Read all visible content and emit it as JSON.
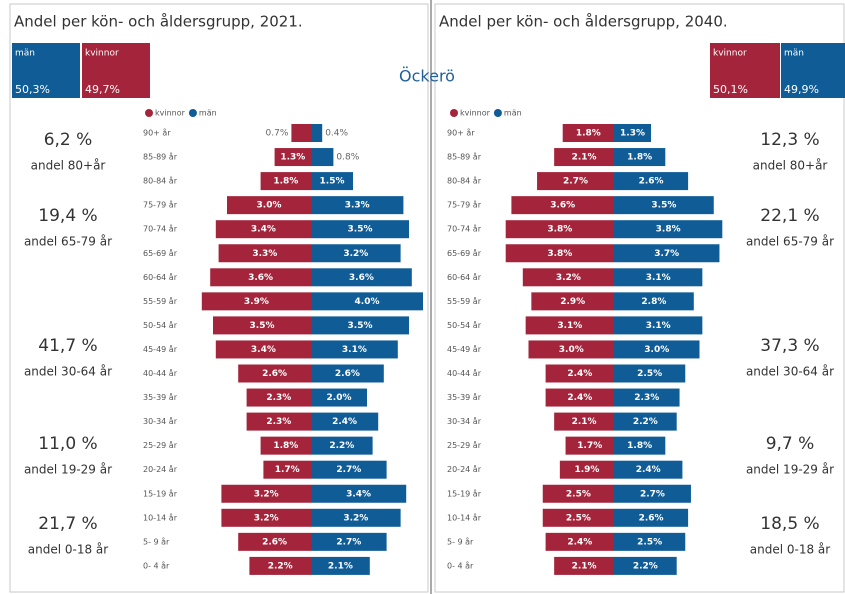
{
  "place": "Öckerö",
  "chart_data": [
    {
      "type": "pyramid",
      "title": "Andel per kön- och åldersgrupp, 2021.",
      "categories": [
        "90+ år",
        "85-89 år",
        "80-84 år",
        "75-79 år",
        "70-74 år",
        "65-69 år",
        "60-64 år",
        "55-59 år",
        "50-54 år",
        "45-49 år",
        "40-44 år",
        "35-39 år",
        "30-34 år",
        "25-29 år",
        "20-24 år",
        "15-19 år",
        "10-14 år",
        "5- 9 år",
        "0- 4 år"
      ],
      "series": [
        {
          "name": "kvinnor",
          "color": "#a4253b",
          "values": [
            0.7,
            1.3,
            1.8,
            3.0,
            3.4,
            3.3,
            3.6,
            3.9,
            3.5,
            3.4,
            2.6,
            2.3,
            2.3,
            1.8,
            1.7,
            3.2,
            3.2,
            2.6,
            2.2
          ],
          "value_labels": [
            "0.7%",
            "1.3%",
            "1.8%",
            "3.0%",
            "3.4%",
            "3.3%",
            "3.6%",
            "3.9%",
            "3.5%",
            "3.4%",
            "2.6%",
            "2.3%",
            "2.3%",
            "1.8%",
            "1.7%",
            "3.2%",
            "3.2%",
            "2.6%",
            "2.2%"
          ]
        },
        {
          "name": "män",
          "color": "#0f5c97",
          "values": [
            0.4,
            0.8,
            1.5,
            3.3,
            3.5,
            3.2,
            3.6,
            4.0,
            3.5,
            3.1,
            2.6,
            2.0,
            2.4,
            2.2,
            2.7,
            3.4,
            3.2,
            2.7,
            2.1
          ],
          "value_labels": [
            "0.4%",
            "0.8%",
            "1.5%",
            "3.3%",
            "3.5%",
            "3.2%",
            "3.6%",
            "4.0%",
            "3.5%",
            "3.1%",
            "2.6%",
            "2.0%",
            "2.4%",
            "2.2%",
            "2.7%",
            "3.4%",
            "3.2%",
            "2.7%",
            "2.1%"
          ]
        }
      ],
      "totals": [
        {
          "name": "män",
          "value": 50.3,
          "label": "50,3%"
        },
        {
          "name": "kvinnor",
          "value": 49.7,
          "label": "49,7%"
        }
      ],
      "groups": [
        {
          "value": 6.2,
          "label": "6,2 %",
          "name": "andel 80+år"
        },
        {
          "value": 19.4,
          "label": "19,4 %",
          "name": "andel 65-79 år"
        },
        {
          "value": 41.7,
          "label": "41,7 %",
          "name": "andel 30-64 år"
        },
        {
          "value": 11.0,
          "label": "11,0 %",
          "name": "andel 19-29 år"
        },
        {
          "value": 21.7,
          "label": "21,7 %",
          "name": "andel 0-18 år"
        }
      ]
    },
    {
      "type": "pyramid",
      "title": "Andel per kön- och åldersgrupp, 2040.",
      "categories": [
        "90+ år",
        "85-89 år",
        "80-84 år",
        "75-79 år",
        "70-74 år",
        "65-69 år",
        "60-64 år",
        "55-59 år",
        "50-54 år",
        "45-49 år",
        "40-44 år",
        "35-39 år",
        "30-34 år",
        "25-29 år",
        "20-24 år",
        "15-19 år",
        "10-14 år",
        "5- 9 år",
        "0- 4 år"
      ],
      "series": [
        {
          "name": "kvinnor",
          "color": "#a4253b",
          "values": [
            1.8,
            2.1,
            2.7,
            3.6,
            3.8,
            3.8,
            3.2,
            2.9,
            3.1,
            3.0,
            2.4,
            2.4,
            2.1,
            1.7,
            1.9,
            2.5,
            2.5,
            2.4,
            2.1
          ],
          "value_labels": [
            "1.8%",
            "2.1%",
            "2.7%",
            "3.6%",
            "3.8%",
            "3.8%",
            "3.2%",
            "2.9%",
            "3.1%",
            "3.0%",
            "2.4%",
            "2.4%",
            "2.1%",
            "1.7%",
            "1.9%",
            "2.5%",
            "2.5%",
            "2.4%",
            "2.1%"
          ]
        },
        {
          "name": "män",
          "color": "#0f5c97",
          "values": [
            1.3,
            1.8,
            2.6,
            3.5,
            3.8,
            3.7,
            3.1,
            2.8,
            3.1,
            3.0,
            2.5,
            2.3,
            2.2,
            1.8,
            2.4,
            2.7,
            2.6,
            2.5,
            2.2
          ],
          "value_labels": [
            "1.3%",
            "1.8%",
            "2.6%",
            "3.5%",
            "3.8%",
            "3.7%",
            "3.1%",
            "2.8%",
            "3.1%",
            "3.0%",
            "2.5%",
            "2.3%",
            "2.2%",
            "1.8%",
            "2.4%",
            "2.7%",
            "2.6%",
            "2.5%",
            "2.2%"
          ]
        }
      ],
      "totals": [
        {
          "name": "kvinnor",
          "value": 50.1,
          "label": "50,1%"
        },
        {
          "name": "män",
          "value": 49.9,
          "label": "49,9%"
        }
      ],
      "groups": [
        {
          "value": 12.3,
          "label": "12,3 %",
          "name": "andel 80+år"
        },
        {
          "value": 22.1,
          "label": "22,1 %",
          "name": "andel 65-79 år"
        },
        {
          "value": 37.3,
          "label": "37,3 %",
          "name": "andel 30-64 år"
        },
        {
          "value": 9.7,
          "label": "9,7 %",
          "name": "andel 19-29 år"
        },
        {
          "value": 18.5,
          "label": "18,5 %",
          "name": "andel 0-18 år"
        }
      ]
    }
  ]
}
